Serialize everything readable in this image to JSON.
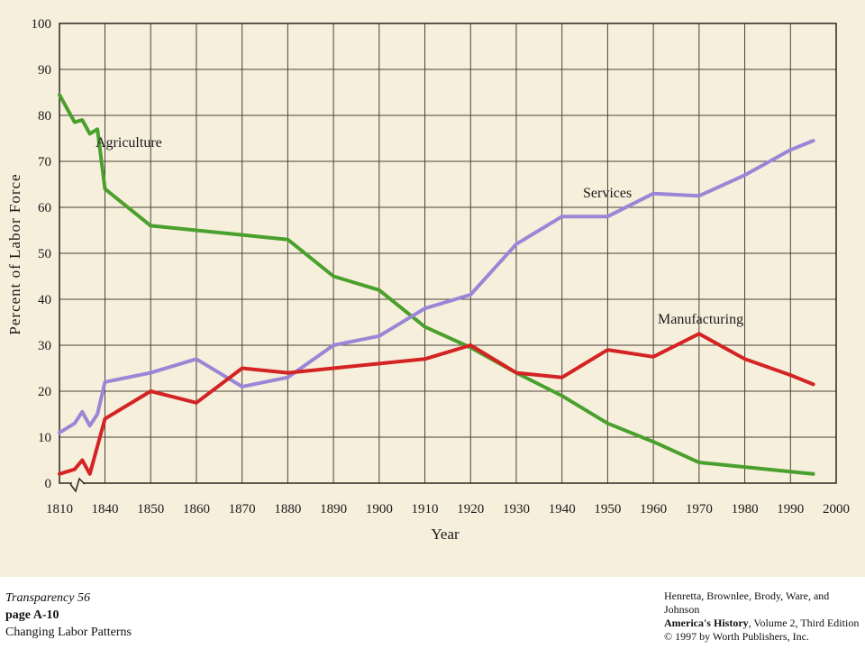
{
  "chart_data": {
    "type": "line",
    "title": "",
    "xlabel": "Year",
    "ylabel": "Percent of Labor Force",
    "xlim": [
      1810,
      2000
    ],
    "ylim": [
      0,
      100
    ],
    "x_ticks": [
      "1810",
      "1840",
      "1850",
      "1860",
      "1870",
      "1880",
      "1890",
      "1900",
      "1910",
      "1920",
      "1930",
      "1940",
      "1950",
      "1960",
      "1970",
      "1980",
      "1990",
      "2000"
    ],
    "y_ticks": [
      "0",
      "10",
      "20",
      "30",
      "40",
      "50",
      "60",
      "70",
      "80",
      "90",
      "100"
    ],
    "axis_break": "between 1810 and 1840",
    "grid": true,
    "legend": "inline labels",
    "series": [
      {
        "name": "Agriculture",
        "color": "#4aa02c",
        "points": [
          [
            1810,
            84.5
          ],
          [
            1820,
            78.5
          ],
          [
            1825,
            79
          ],
          [
            1830,
            76
          ],
          [
            1835,
            77
          ],
          [
            1840,
            64
          ],
          [
            1850,
            56
          ],
          [
            1860,
            55
          ],
          [
            1870,
            54
          ],
          [
            1880,
            53
          ],
          [
            1890,
            45
          ],
          [
            1900,
            42
          ],
          [
            1910,
            34
          ],
          [
            1920,
            29.5
          ],
          [
            1930,
            24
          ],
          [
            1940,
            19
          ],
          [
            1950,
            13
          ],
          [
            1960,
            9
          ],
          [
            1970,
            4.5
          ],
          [
            1980,
            3.5
          ],
          [
            1990,
            2.5
          ],
          [
            1995,
            2
          ]
        ]
      },
      {
        "name": "Services",
        "color": "#9a86d6",
        "points": [
          [
            1810,
            11
          ],
          [
            1820,
            13
          ],
          [
            1825,
            15.5
          ],
          [
            1830,
            12.5
          ],
          [
            1835,
            15
          ],
          [
            1840,
            22
          ],
          [
            1850,
            24
          ],
          [
            1860,
            27
          ],
          [
            1870,
            21
          ],
          [
            1880,
            23
          ],
          [
            1890,
            30
          ],
          [
            1900,
            32
          ],
          [
            1910,
            38
          ],
          [
            1920,
            41
          ],
          [
            1930,
            52
          ],
          [
            1940,
            58
          ],
          [
            1950,
            58
          ],
          [
            1960,
            63
          ],
          [
            1970,
            62.5
          ],
          [
            1980,
            67
          ],
          [
            1990,
            72.5
          ],
          [
            1995,
            74.5
          ]
        ]
      },
      {
        "name": "Manufacturing",
        "color": "#d42323",
        "points": [
          [
            1810,
            2
          ],
          [
            1820,
            3
          ],
          [
            1825,
            5
          ],
          [
            1830,
            2
          ],
          [
            1840,
            14
          ],
          [
            1850,
            20
          ],
          [
            1860,
            17.5
          ],
          [
            1870,
            25
          ],
          [
            1880,
            24
          ],
          [
            1890,
            25
          ],
          [
            1900,
            26
          ],
          [
            1910,
            27
          ],
          [
            1920,
            30
          ],
          [
            1930,
            24
          ],
          [
            1940,
            23
          ],
          [
            1950,
            29
          ],
          [
            1960,
            27.5
          ],
          [
            1970,
            32.5
          ],
          [
            1980,
            27
          ],
          [
            1990,
            23.5
          ],
          [
            1995,
            21.5
          ]
        ]
      }
    ]
  },
  "footer": {
    "left": {
      "transparency": "Transparency 56",
      "page": "page A-10",
      "subject": "Changing Labor Patterns"
    },
    "right": {
      "authors": "Henretta, Brownlee, Brody, Ware, and Johnson",
      "book_title": "America's History",
      "edition": ", Volume 2, Third Edition",
      "copyright": "© 1997 by Worth Publishers, Inc."
    }
  }
}
